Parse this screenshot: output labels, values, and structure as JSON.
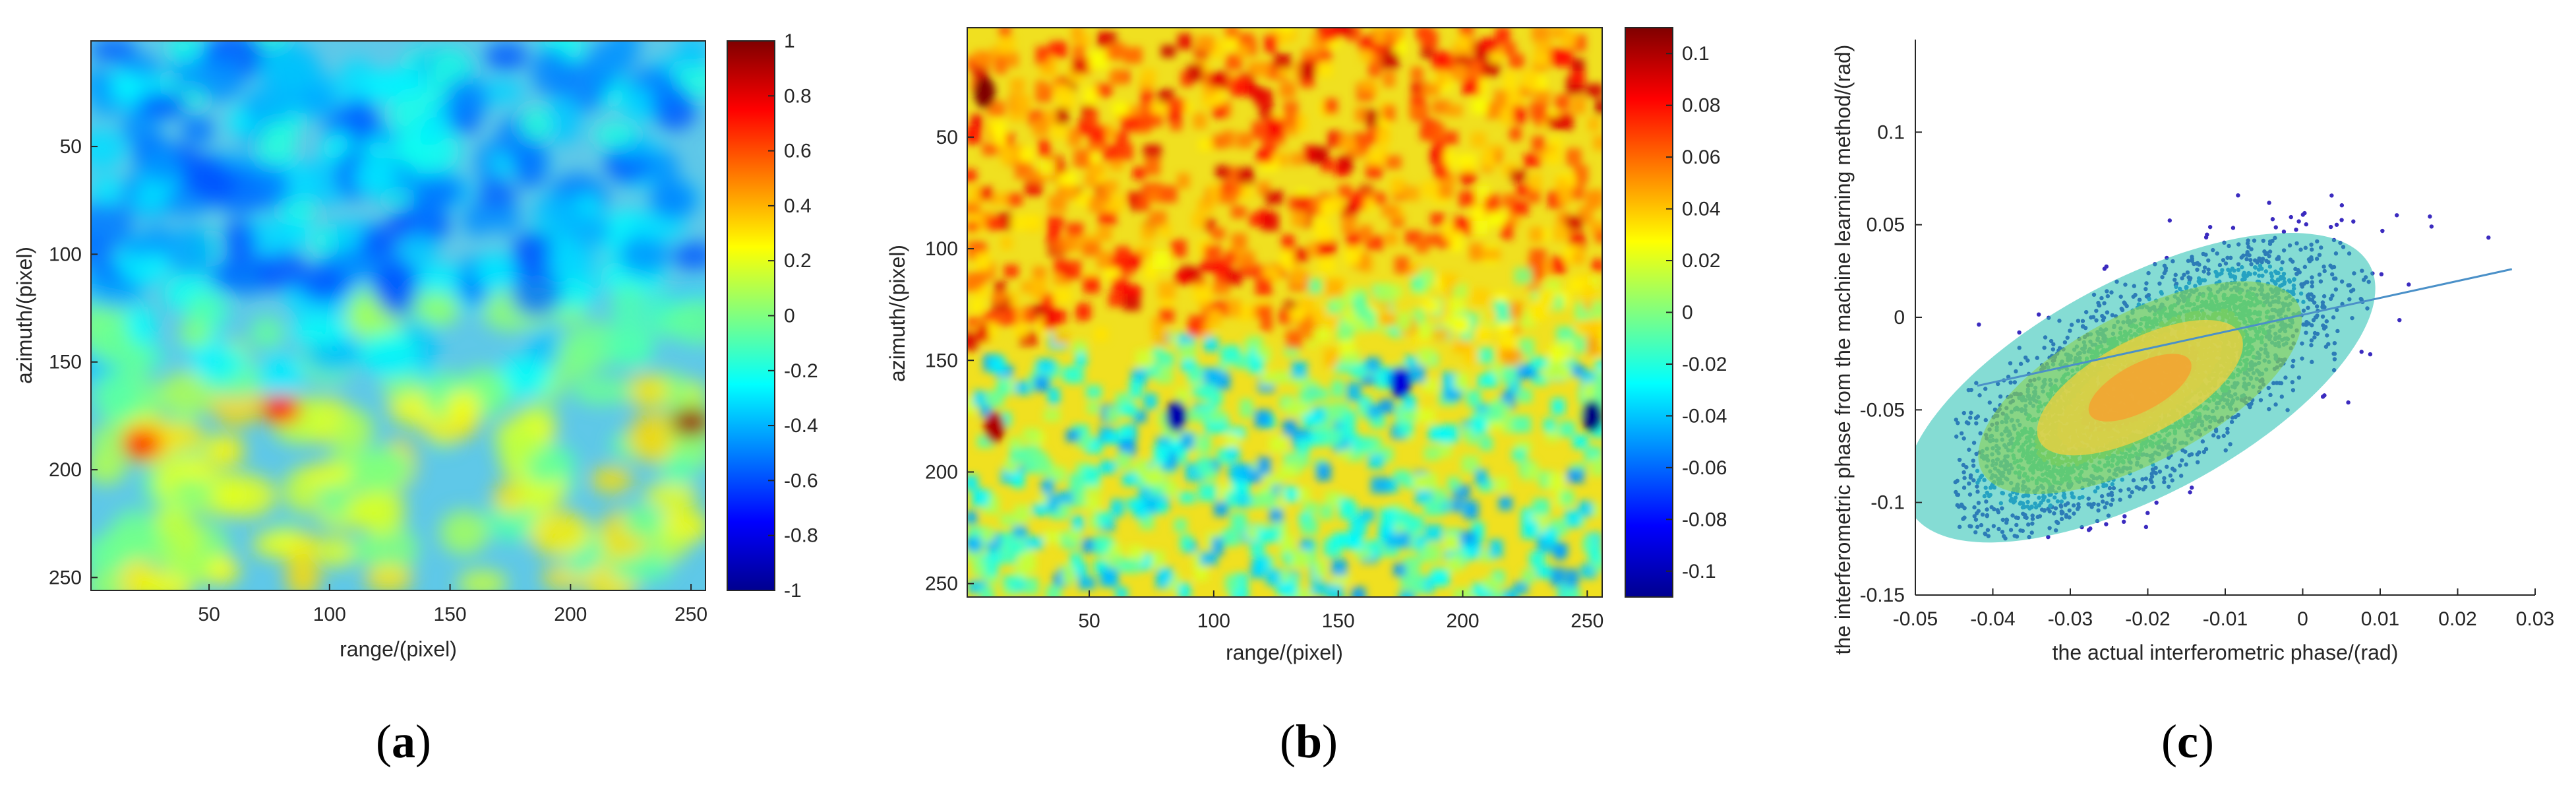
{
  "chart_data": [
    {
      "type": "heatmap",
      "caption_open": "(",
      "caption_letter": "a",
      "caption_close": ")",
      "xlabel": "range/(pixel)",
      "ylabel": "azimuth/(pixel)",
      "xlim": [
        1,
        256
      ],
      "ylim": [
        1,
        256
      ],
      "x_ticks": [
        "50",
        "100",
        "150",
        "200",
        "250"
      ],
      "y_ticks": [
        "50",
        "100",
        "150",
        "200",
        "250"
      ],
      "colormap": "jet",
      "color_range": [
        -1,
        1
      ],
      "colorbar_ticks": [
        "1",
        "0.8",
        "0.6",
        "0.4",
        "0.2",
        "0",
        "-0.2",
        "-0.4",
        "-0.6",
        "-0.8",
        "-1"
      ],
      "description_rows": [
        "upper half mostly negative (cyan/blue, about -0.3 to -0.6)",
        "lower half mostly positive (green/yellow, about 0 to 0.4)"
      ],
      "hotspots": [
        {
          "x": 80,
          "y": 172,
          "value": 0.75
        },
        {
          "x": 22,
          "y": 188,
          "value": 0.7
        },
        {
          "x": 250,
          "y": 178,
          "value": 0.95
        }
      ],
      "colors": {
        "low": "#00008f",
        "mid": "#80ff80",
        "high": "#800000"
      }
    },
    {
      "type": "heatmap",
      "caption_open": "(",
      "caption_letter": "b",
      "caption_close": ")",
      "xlabel": "range/(pixel)",
      "ylabel": "azimuth/(pixel)",
      "xlim": [
        1,
        256
      ],
      "ylim": [
        1,
        256
      ],
      "x_ticks": [
        "50",
        "100",
        "150",
        "200",
        "250"
      ],
      "y_ticks": [
        "50",
        "100",
        "150",
        "200",
        "250"
      ],
      "colormap": "jet",
      "color_range": [
        -0.11,
        0.11
      ],
      "colorbar_ticks": [
        "0.1",
        "0.08",
        "0.06",
        "0.04",
        "0.02",
        "0",
        "-0.02",
        "-0.04",
        "-0.06",
        "-0.08",
        "-0.1"
      ],
      "hotspots": [
        {
          "x": 8,
          "y": 30,
          "value": 0.11
        },
        {
          "x": 12,
          "y": 180,
          "value": 0.1
        },
        {
          "x": 85,
          "y": 175,
          "value": -0.1
        },
        {
          "x": 252,
          "y": 175,
          "value": -0.11
        },
        {
          "x": 175,
          "y": 160,
          "value": -0.09
        }
      ]
    },
    {
      "type": "scatter",
      "caption_open": "(",
      "caption_letter": "c",
      "caption_close": ")",
      "xlabel": "the actual interferometric phase/(rad)",
      "ylabel": "the interferometric phase from the machine learning method/(rad)",
      "xlim": [
        -0.05,
        0.03
      ],
      "ylim": [
        -0.15,
        0.15
      ],
      "x_ticks": [
        "-0.05",
        "-0.04",
        "-0.03",
        "-0.02",
        "-0.01",
        "0",
        "0.01",
        "0.02",
        "0.03"
      ],
      "x_tick_values": [
        -0.05,
        -0.04,
        -0.03,
        -0.02,
        -0.01,
        0,
        0.01,
        0.02,
        0.03
      ],
      "y_ticks": [
        "0.1",
        "0.05",
        "0",
        "-0.05",
        "-0.1",
        "-0.15"
      ],
      "y_tick_values": [
        0.1,
        0.05,
        0,
        -0.05,
        -0.1,
        -0.15
      ],
      "density_center": {
        "x": -0.021,
        "y": -0.038
      },
      "points_clipped_to": [
        -0.12,
        0.125
      ],
      "fit_line": {
        "x": [
          -0.042,
          0.027
        ],
        "y": [
          -0.037,
          0.026
        ],
        "color": "#4a90c8"
      },
      "color_scale": [
        "#3b2bbf",
        "#2a7fd8",
        "#20c0b0",
        "#8ad050",
        "#f0d040",
        "#f5a030"
      ],
      "grid": false
    }
  ]
}
